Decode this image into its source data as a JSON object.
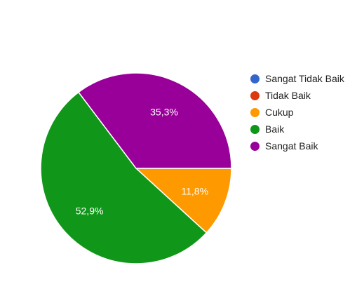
{
  "chart_data": {
    "type": "pie",
    "title": "",
    "categories": [
      "Sangat Tidak Baik",
      "Tidak Baik",
      "Cukup",
      "Baik",
      "Sangat Baik"
    ],
    "values": [
      0,
      0,
      11.8,
      52.9,
      35.3
    ],
    "labels": [
      "",
      "",
      "11,8%",
      "52,9%",
      "35,3%"
    ],
    "colors": [
      "#3366cc",
      "#dc3912",
      "#ff9900",
      "#109618",
      "#990099"
    ],
    "legend_position": "right"
  },
  "legend": {
    "items": [
      {
        "label": "Sangat Tidak Baik",
        "color": "#3366cc"
      },
      {
        "label": "Tidak Baik",
        "color": "#dc3912"
      },
      {
        "label": "Cukup",
        "color": "#ff9900"
      },
      {
        "label": "Baik",
        "color": "#109618"
      },
      {
        "label": "Sangat Baik",
        "color": "#990099"
      }
    ]
  }
}
